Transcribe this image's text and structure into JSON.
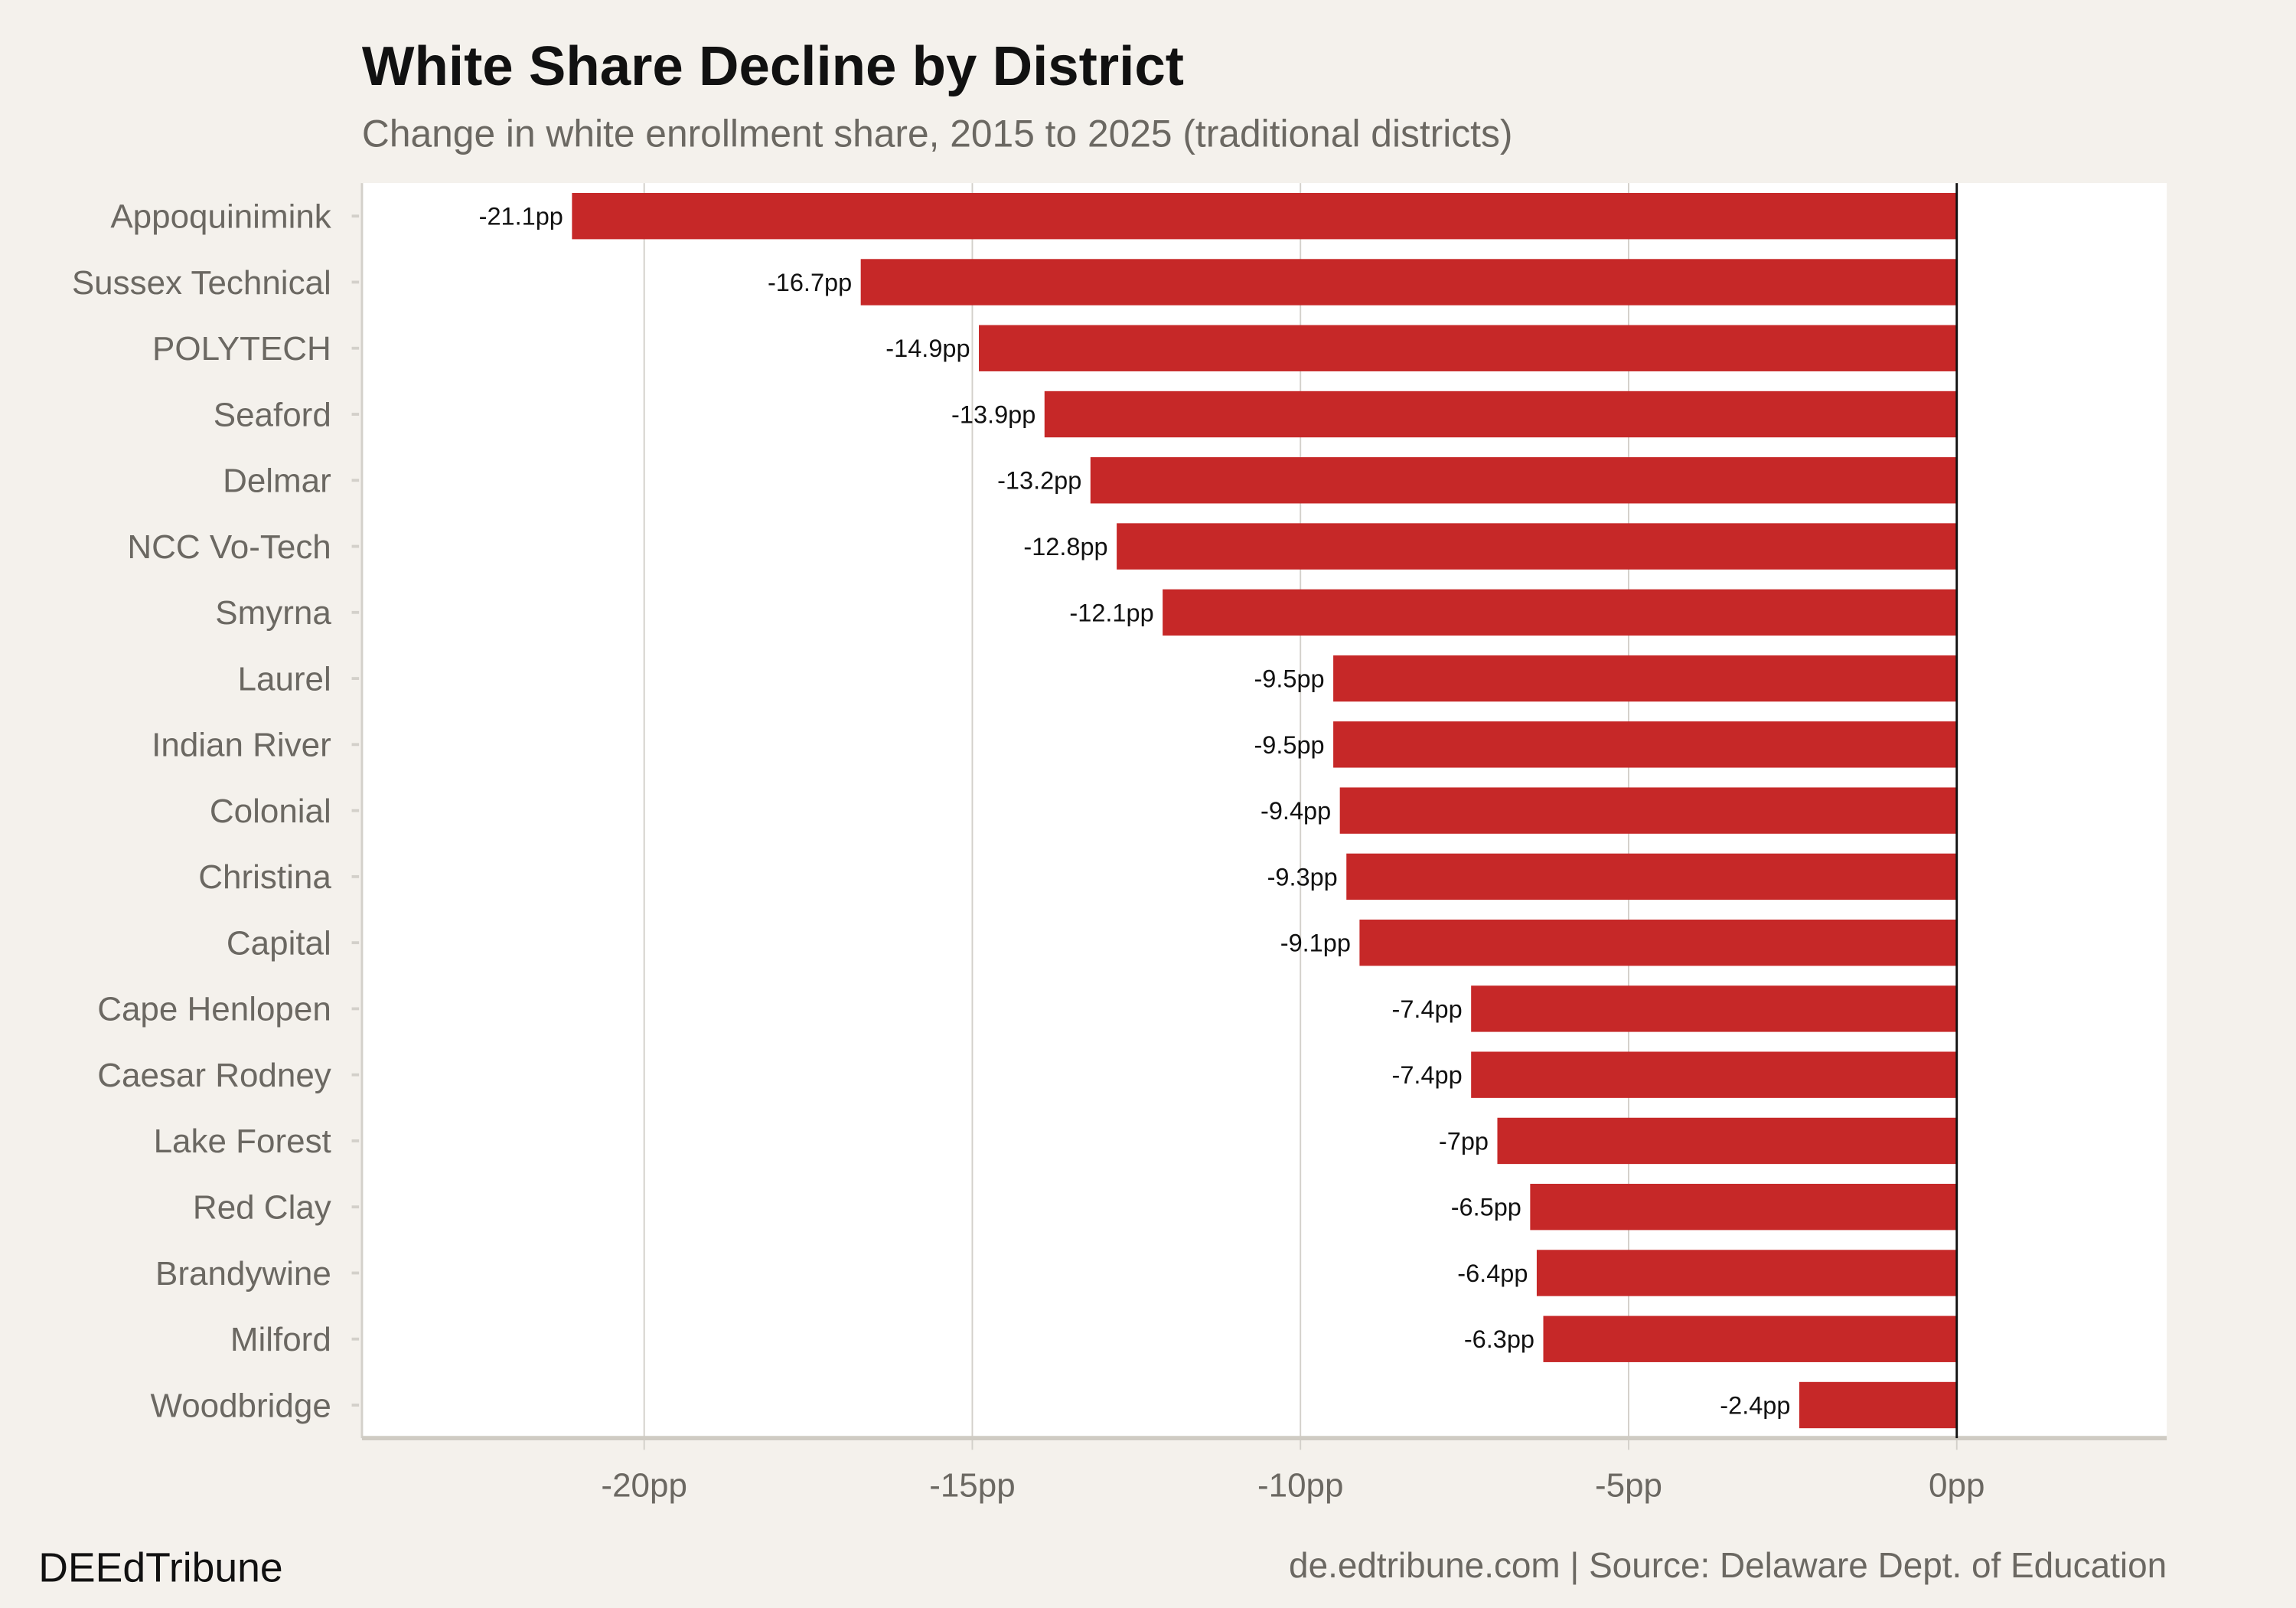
{
  "chart_data": {
    "type": "bar",
    "orientation": "horizontal",
    "title": "White Share Decline by District",
    "subtitle": "Change in white enrollment share, 2015 to 2025 (traditional districts)",
    "xlabel": "",
    "ylabel": "",
    "categories": [
      "Appoquinimink",
      "Sussex Technical",
      "POLYTECH",
      "Seaford",
      "Delmar",
      "NCC Vo-Tech",
      "Smyrna",
      "Laurel",
      "Indian River",
      "Colonial",
      "Christina",
      "Capital",
      "Cape Henlopen",
      "Caesar Rodney",
      "Lake Forest",
      "Red Clay",
      "Brandywine",
      "Milford",
      "Woodbridge"
    ],
    "values": [
      -21.1,
      -16.7,
      -14.9,
      -13.9,
      -13.2,
      -12.8,
      -12.1,
      -9.5,
      -9.5,
      -9.4,
      -9.3,
      -9.1,
      -7.4,
      -7.4,
      -7.0,
      -6.5,
      -6.4,
      -6.3,
      -2.4
    ],
    "data_labels": [
      "-21.1pp",
      "-16.7pp",
      "-14.9pp",
      "-13.9pp",
      "-13.2pp",
      "-12.8pp",
      "-12.1pp",
      "-9.5pp",
      "-9.5pp",
      "-9.4pp",
      "-9.3pp",
      "-9.1pp",
      "-7.4pp",
      "-7.4pp",
      "-7pp",
      "-6.5pp",
      "-6.4pp",
      "-6.3pp",
      "-2.4pp"
    ],
    "xlim": [
      -24.3,
      3.2
    ],
    "xticks": [
      -20,
      -15,
      -10,
      -5,
      0
    ],
    "xtick_labels": [
      "-20pp",
      "-15pp",
      "-10pp",
      "-5pp",
      "0pp"
    ],
    "grid": "vertical",
    "legend": "none",
    "colors": {
      "bar": "#c62828",
      "background": "#f4f1ec",
      "panel": "#ffffff",
      "grid": "#d3d0ca",
      "zero_line": "#111111"
    }
  },
  "footer": {
    "brand": "DEEdTribune",
    "source": "de.edtribune.com | Source: Delaware Dept. of Education"
  }
}
